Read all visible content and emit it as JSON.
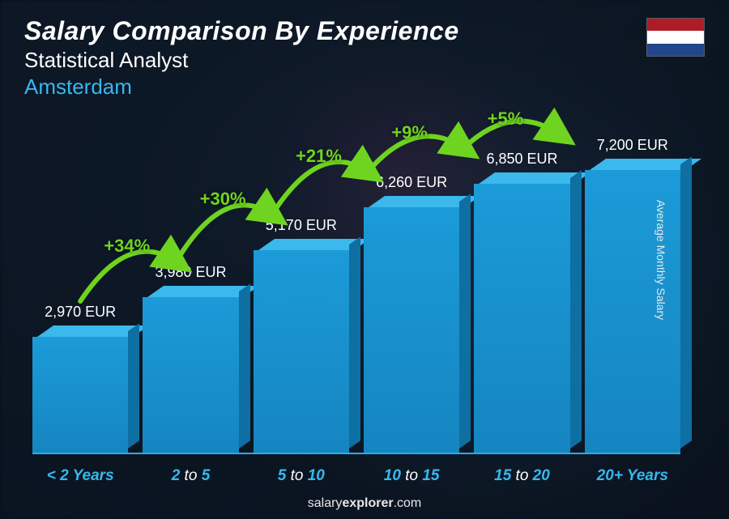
{
  "header": {
    "title": "Salary Comparison By Experience",
    "subtitle": "Statistical Analyst",
    "location": "Amsterdam",
    "subtitle_color": "#ffffff",
    "location_color": "#36b8ee"
  },
  "flag": {
    "stripes": [
      "#ae1c28",
      "#ffffff",
      "#21468b"
    ]
  },
  "axis_label": "Average Monthly Salary",
  "chart": {
    "type": "bar",
    "currency": "EUR",
    "max_value": 7500,
    "bar_color_front": "#1b9bd8",
    "bar_color_top": "#3bb8ec",
    "bar_color_side": "#0e6fa3",
    "x_label_color": "#36b8ee",
    "bars": [
      {
        "value": 2970,
        "value_label": "2,970 EUR",
        "x_prefix": "< ",
        "x_main": "2",
        "x_sep": "",
        "x_suffix": " Years"
      },
      {
        "value": 3980,
        "value_label": "3,980 EUR",
        "x_prefix": "",
        "x_main": "2",
        "x_sep": " to ",
        "x_suffix": "5"
      },
      {
        "value": 5170,
        "value_label": "5,170 EUR",
        "x_prefix": "",
        "x_main": "5",
        "x_sep": " to ",
        "x_suffix": "10"
      },
      {
        "value": 6260,
        "value_label": "6,260 EUR",
        "x_prefix": "",
        "x_main": "10",
        "x_sep": " to ",
        "x_suffix": "15"
      },
      {
        "value": 6850,
        "value_label": "6,850 EUR",
        "x_prefix": "",
        "x_main": "15",
        "x_sep": " to ",
        "x_suffix": "20"
      },
      {
        "value": 7200,
        "value_label": "7,200 EUR",
        "x_prefix": "",
        "x_main": "20+",
        "x_sep": "",
        "x_suffix": " Years"
      }
    ],
    "arcs": [
      {
        "label": "+34%",
        "color": "#6fd41f"
      },
      {
        "label": "+30%",
        "color": "#6fd41f"
      },
      {
        "label": "+21%",
        "color": "#6fd41f"
      },
      {
        "label": "+9%",
        "color": "#6fd41f"
      },
      {
        "label": "+5%",
        "color": "#6fd41f"
      }
    ]
  },
  "attribution": {
    "name": "salary",
    "bold": "explorer",
    "suffix": ".com"
  }
}
